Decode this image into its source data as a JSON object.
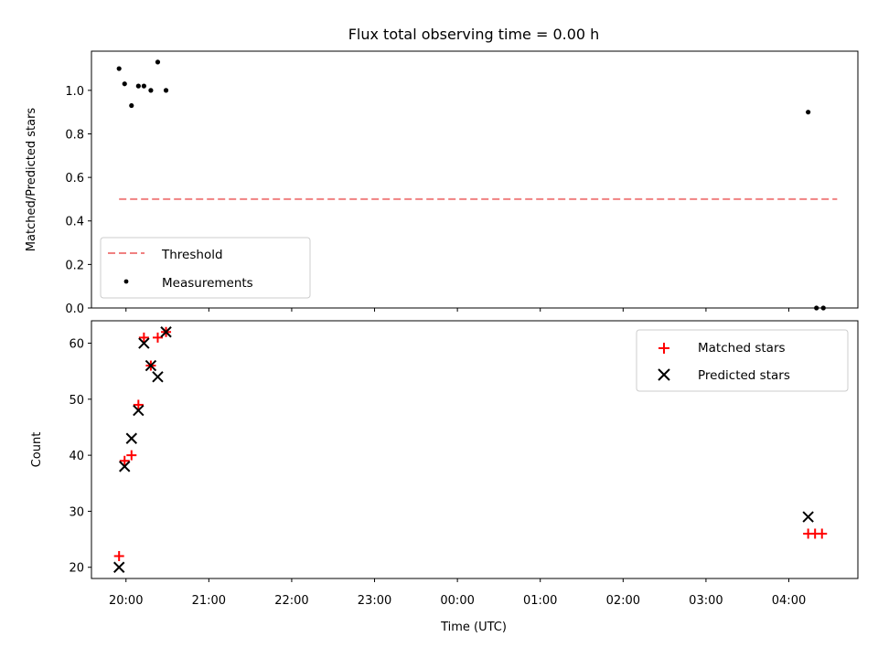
{
  "chart_data": [
    {
      "type": "scatter",
      "title": "Flux total observing time = 0.00 h",
      "xlabel": "",
      "ylabel": "Matched/Predicted stars",
      "ylim": [
        0,
        1.18
      ],
      "yticks": [
        "0.0",
        "0.2",
        "0.4",
        "0.6",
        "0.8",
        "1.0"
      ],
      "xlim": [
        "19:35",
        "04:50"
      ],
      "legend_position": "lower-left",
      "series": [
        {
          "name": "Threshold",
          "style": "dashed-line",
          "color": "#f08080",
          "points": [
            {
              "x": "19:55",
              "y": 0.5
            },
            {
              "x": "04:35",
              "y": 0.5
            }
          ]
        },
        {
          "name": "Measurements",
          "style": "dot",
          "color": "#000000",
          "points": [
            {
              "x": "19:55",
              "y": 1.1
            },
            {
              "x": "19:59",
              "y": 1.03
            },
            {
              "x": "20:04",
              "y": 0.93
            },
            {
              "x": "20:09",
              "y": 1.02
            },
            {
              "x": "20:13",
              "y": 1.02
            },
            {
              "x": "20:18",
              "y": 1.0
            },
            {
              "x": "20:23",
              "y": 1.13
            },
            {
              "x": "20:29",
              "y": 1.0
            },
            {
              "x": "04:14",
              "y": 0.9
            },
            {
              "x": "04:20",
              "y": 0.0
            },
            {
              "x": "04:25",
              "y": 0.0
            }
          ]
        }
      ]
    },
    {
      "type": "scatter",
      "title": "",
      "xlabel": "Time (UTC)",
      "ylabel": "Count",
      "ylim": [
        18,
        64
      ],
      "yticks": [
        "20",
        "30",
        "40",
        "50",
        "60"
      ],
      "xlim": [
        "19:35",
        "04:50"
      ],
      "xticks": [
        "20:00",
        "21:00",
        "22:00",
        "23:00",
        "00:00",
        "01:00",
        "02:00",
        "03:00",
        "04:00"
      ],
      "legend_position": "upper-right",
      "series": [
        {
          "name": "Matched stars",
          "marker": "plus",
          "color": "#ff0000",
          "points": [
            {
              "x": "19:55",
              "y": 22
            },
            {
              "x": "19:59",
              "y": 39
            },
            {
              "x": "20:04",
              "y": 40
            },
            {
              "x": "20:09",
              "y": 49
            },
            {
              "x": "20:13",
              "y": 61
            },
            {
              "x": "20:18",
              "y": 56
            },
            {
              "x": "20:23",
              "y": 61
            },
            {
              "x": "20:29",
              "y": 62
            },
            {
              "x": "04:14",
              "y": 26
            },
            {
              "x": "04:19",
              "y": 26
            },
            {
              "x": "04:24",
              "y": 26
            }
          ]
        },
        {
          "name": "Predicted stars",
          "marker": "x",
          "color": "#000000",
          "points": [
            {
              "x": "19:55",
              "y": 20
            },
            {
              "x": "19:59",
              "y": 38
            },
            {
              "x": "20:04",
              "y": 43
            },
            {
              "x": "20:09",
              "y": 48
            },
            {
              "x": "20:13",
              "y": 60
            },
            {
              "x": "20:18",
              "y": 56
            },
            {
              "x": "20:23",
              "y": 54
            },
            {
              "x": "20:29",
              "y": 62
            },
            {
              "x": "04:14",
              "y": 29
            }
          ]
        }
      ]
    }
  ]
}
